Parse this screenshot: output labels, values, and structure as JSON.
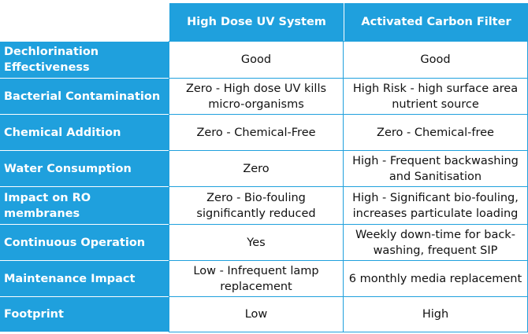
{
  "table": {
    "columns": [
      "High Dose UV System",
      "Activated Carbon Filter"
    ],
    "rows": [
      {
        "label": "Dechlorination Effectiveness",
        "uv": "Good",
        "carbon": "Good"
      },
      {
        "label": "Bacterial Contamination",
        "uv": "Zero - High dose UV kills micro-organisms",
        "carbon": "High Risk - high surface area nutrient source"
      },
      {
        "label": "Chemical Addition",
        "uv": "Zero - Chemical-Free",
        "carbon": "Zero - Chemical-free"
      },
      {
        "label": "Water Consumption",
        "uv": "Zero",
        "carbon": "High - Frequent backwashing and Sanitisation"
      },
      {
        "label": "Impact on RO membranes",
        "uv": "Zero - Bio-fouling significantly reduced",
        "carbon": "High - Significant bio-fouling, increases particulate loading"
      },
      {
        "label": "Continuous Operation",
        "uv": "Yes",
        "carbon": "Weekly down-time for back-washing, frequent SIP"
      },
      {
        "label": "Maintenance Impact",
        "uv": "Low - Infrequent lamp replacement",
        "carbon": "6 monthly media replacement"
      },
      {
        "label": "Footprint",
        "uv": "Low",
        "carbon": "High"
      }
    ]
  }
}
